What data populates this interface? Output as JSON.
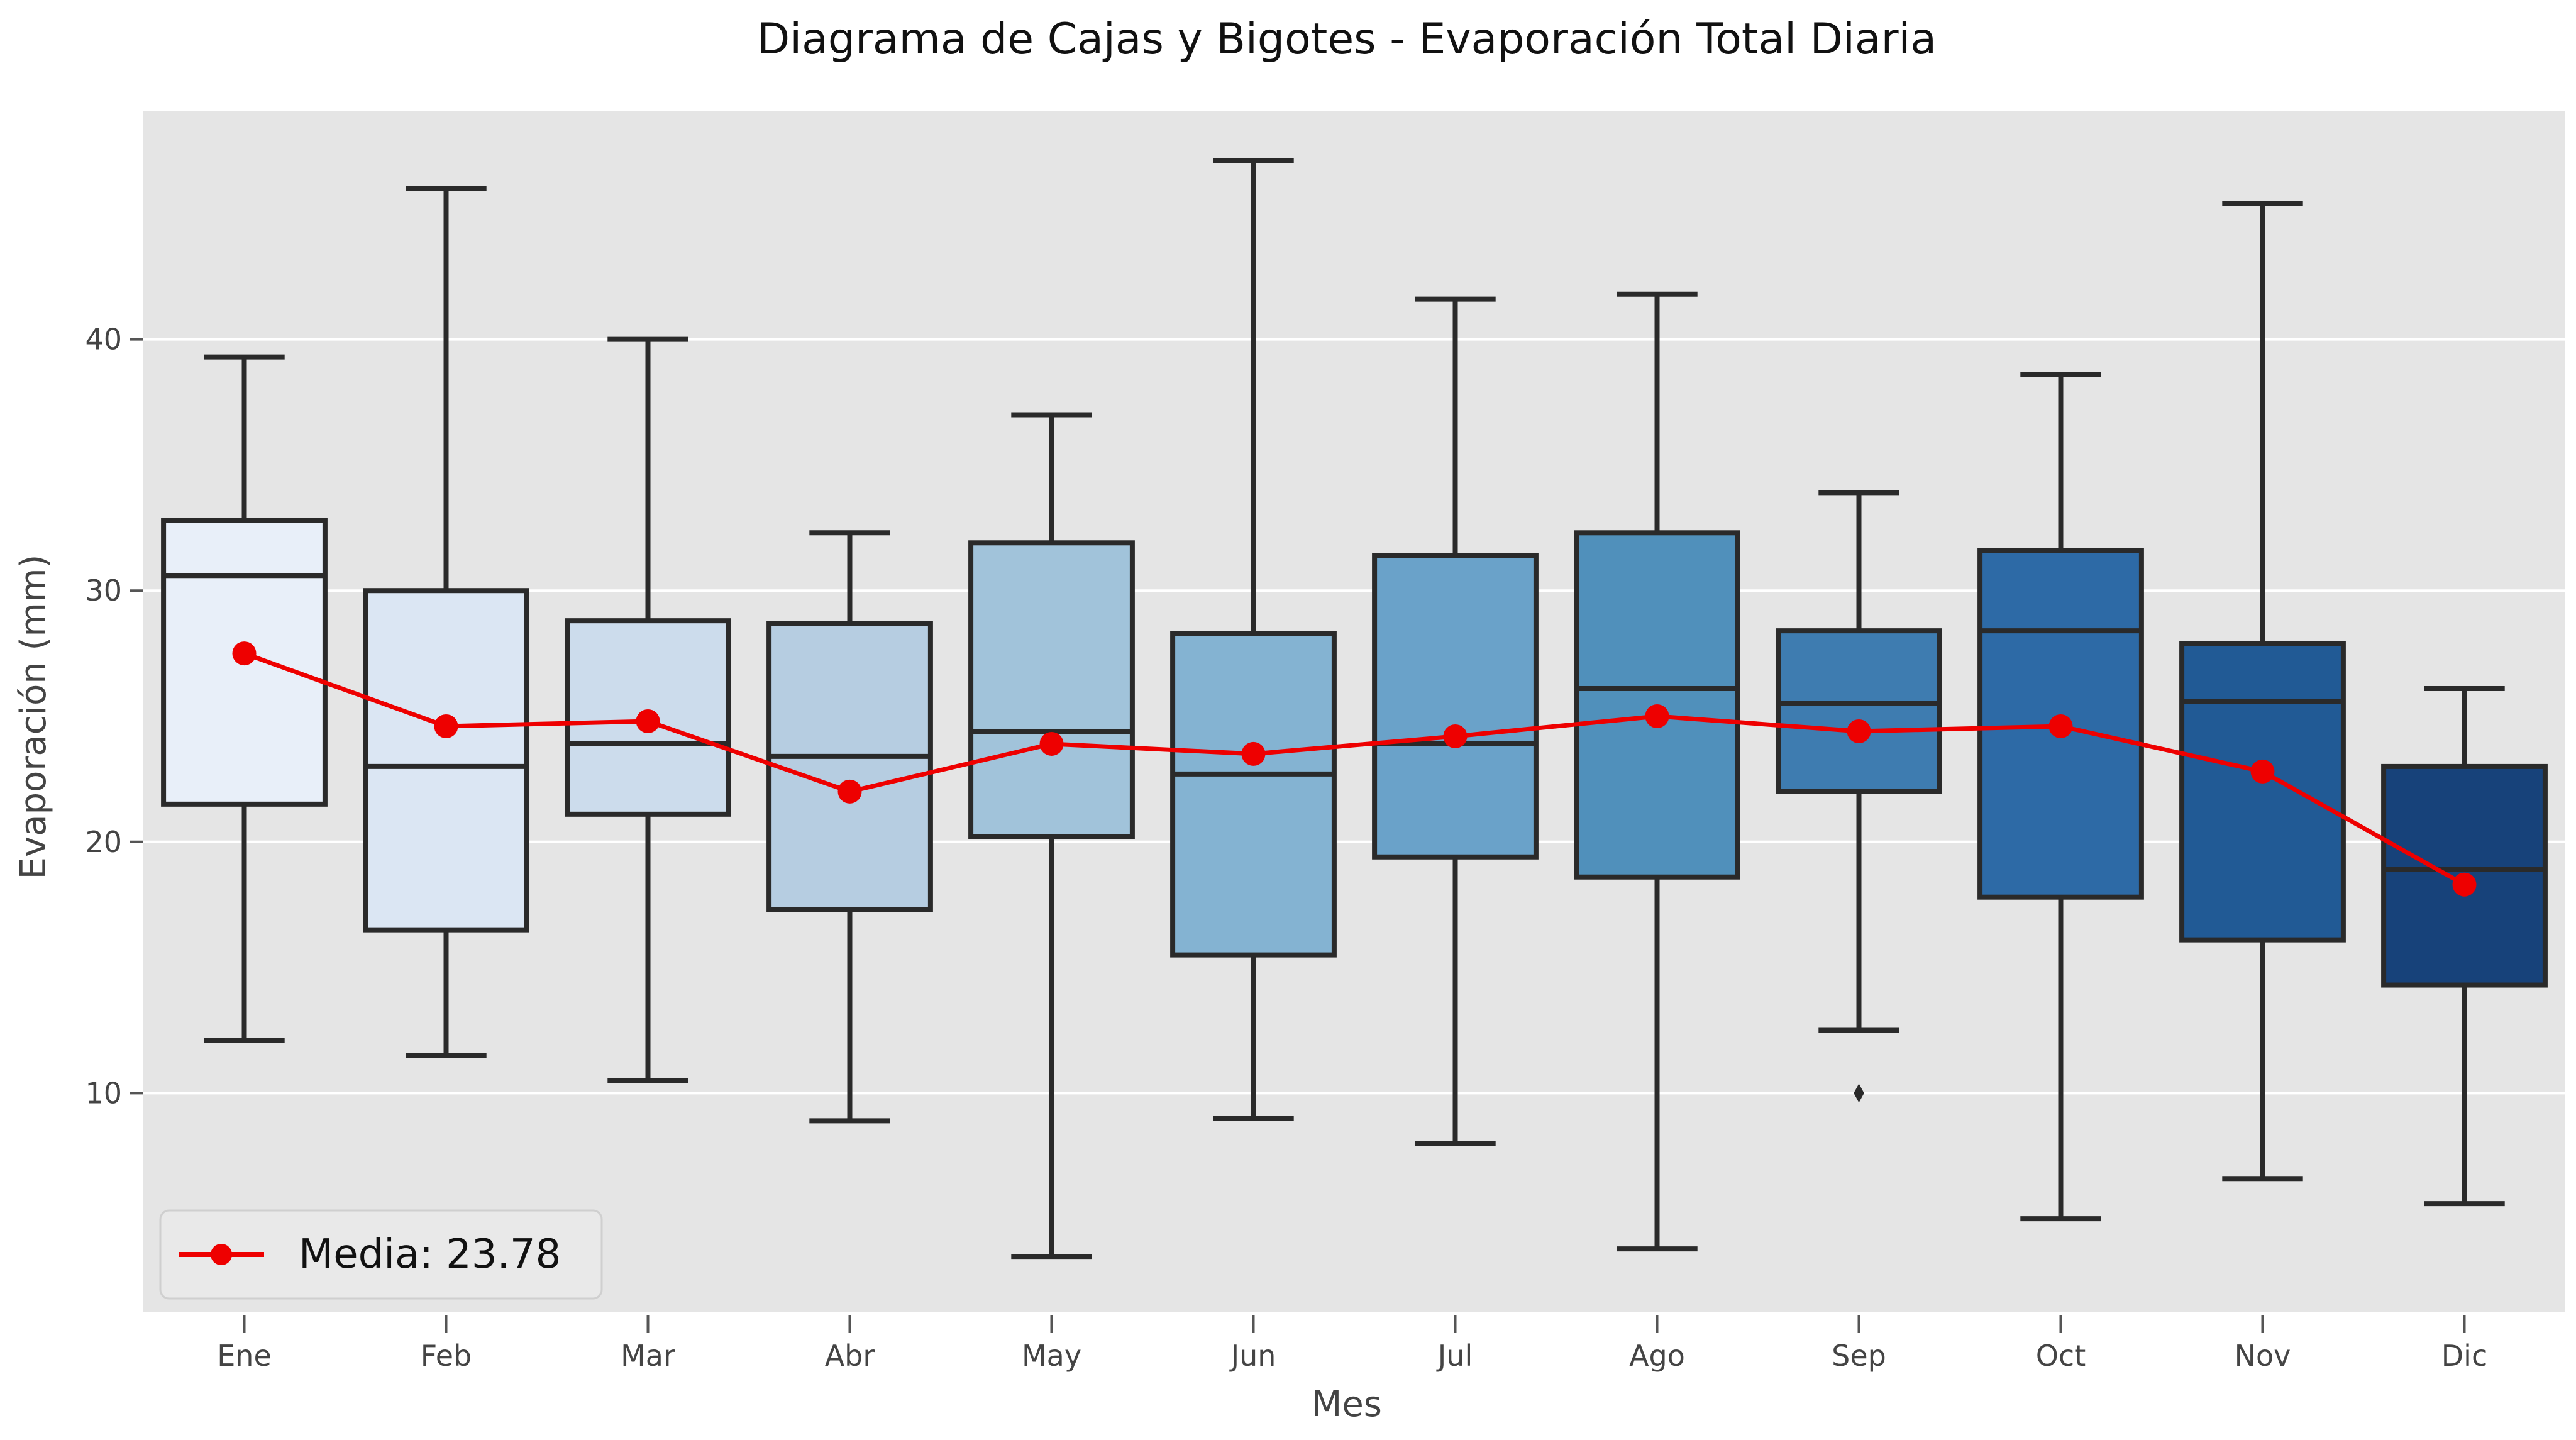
{
  "chart_data": {
    "type": "box",
    "title": "Diagrama de Cajas y Bigotes - Evaporación Total Diaria",
    "xlabel": "Mes",
    "ylabel": "Evaporación (mm)",
    "categories": [
      "Ene",
      "Feb",
      "Mar",
      "Abr",
      "May",
      "Jun",
      "Jul",
      "Ago",
      "Sep",
      "Oct",
      "Nov",
      "Dic"
    ],
    "ylim": [
      1.3,
      49.1
    ],
    "yticks": [
      10,
      20,
      30,
      40
    ],
    "grid": true,
    "legend_position": "lower-left",
    "boxes": [
      {
        "whisker_low": 12.1,
        "q1": 21.5,
        "median": 30.6,
        "q3": 32.8,
        "whisker_high": 39.3,
        "outliers": []
      },
      {
        "whisker_low": 11.5,
        "q1": 16.5,
        "median": 23.0,
        "q3": 30.0,
        "whisker_high": 46.0,
        "outliers": []
      },
      {
        "whisker_low": 10.5,
        "q1": 21.1,
        "median": 23.9,
        "q3": 28.8,
        "whisker_high": 40.0,
        "outliers": []
      },
      {
        "whisker_low": 8.9,
        "q1": 17.3,
        "median": 23.4,
        "q3": 28.7,
        "whisker_high": 32.3,
        "outliers": []
      },
      {
        "whisker_low": 3.5,
        "q1": 20.2,
        "median": 24.4,
        "q3": 31.9,
        "whisker_high": 37.0,
        "outliers": []
      },
      {
        "whisker_low": 9.0,
        "q1": 15.5,
        "median": 22.7,
        "q3": 28.3,
        "whisker_high": 47.1,
        "outliers": []
      },
      {
        "whisker_low": 8.0,
        "q1": 19.4,
        "median": 23.9,
        "q3": 31.4,
        "whisker_high": 41.6,
        "outliers": []
      },
      {
        "whisker_low": 3.8,
        "q1": 18.6,
        "median": 26.1,
        "q3": 32.3,
        "whisker_high": 41.8,
        "outliers": []
      },
      {
        "whisker_low": 12.5,
        "q1": 22.0,
        "median": 25.5,
        "q3": 28.4,
        "whisker_high": 33.9,
        "outliers": [
          10.0
        ]
      },
      {
        "whisker_low": 5.0,
        "q1": 17.8,
        "median": 28.4,
        "q3": 31.6,
        "whisker_high": 38.6,
        "outliers": []
      },
      {
        "whisker_low": 6.6,
        "q1": 16.1,
        "median": 25.6,
        "q3": 27.9,
        "whisker_high": 45.4,
        "outliers": []
      },
      {
        "whisker_low": 5.6,
        "q1": 14.3,
        "median": 18.9,
        "q3": 23.0,
        "whisker_high": 26.1,
        "outliers": []
      }
    ],
    "mean_series": {
      "values": [
        27.5,
        24.6,
        24.8,
        22.0,
        23.9,
        23.5,
        24.2,
        25.0,
        24.4,
        24.6,
        22.8,
        18.3
      ],
      "color": "#ee0000"
    },
    "legend": {
      "label": "Media: 23.78"
    },
    "box_colors": [
      "#e8eff9",
      "#dbe6f3",
      "#ccdcec",
      "#b6cde1",
      "#a1c3da",
      "#84b3d2",
      "#6aa2c9",
      "#5090bb",
      "#3e7cb0",
      "#2d6aa6",
      "#215a95",
      "#17427a"
    ],
    "colors": {
      "plot_bg": "#e5e5e5",
      "grid": "#ffffff",
      "outline": "#2a2a2a",
      "text": "#2b2b2b",
      "tick_text": "#444444"
    }
  }
}
